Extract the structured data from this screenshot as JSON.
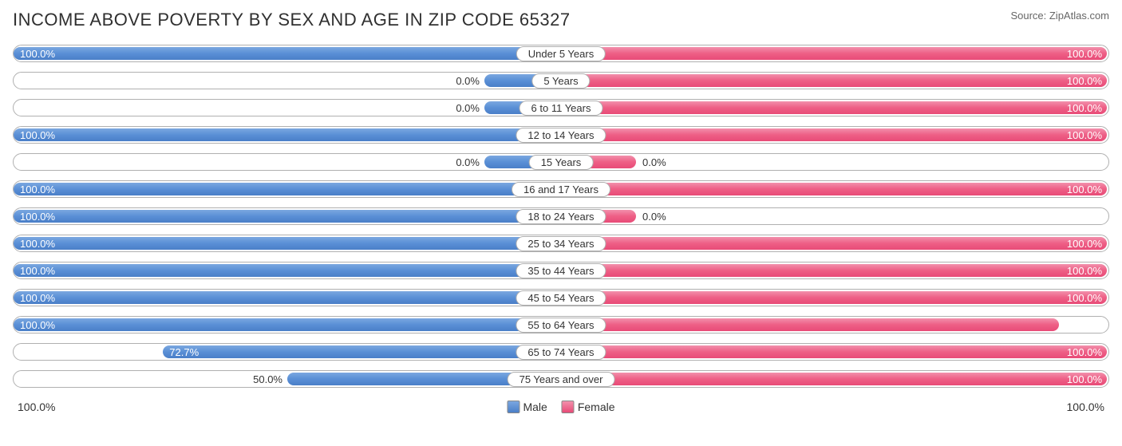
{
  "title": "INCOME ABOVE POVERTY BY SEX AND AGE IN ZIP CODE 65327",
  "source": "Source: ZipAtlas.com",
  "chart": {
    "type": "diverging-bar",
    "male_color_top": "#7ba7e0",
    "male_color_bottom": "#4a7fc8",
    "female_color_top": "#f290ac",
    "female_color_bottom": "#e84b77",
    "track_border_color": "#b0b0b0",
    "background_color": "#ffffff",
    "min_bar_pct": 14,
    "axis_left": "100.0%",
    "axis_right": "100.0%",
    "legend": {
      "male": "Male",
      "female": "Female"
    },
    "rows": [
      {
        "category": "Under 5 Years",
        "male_val": 100.0,
        "male_label": "100.0%",
        "female_val": 100.0,
        "female_label": "100.0%"
      },
      {
        "category": "5 Years",
        "male_val": 0.0,
        "male_label": "0.0%",
        "female_val": 100.0,
        "female_label": "100.0%"
      },
      {
        "category": "6 to 11 Years",
        "male_val": 0.0,
        "male_label": "0.0%",
        "female_val": 100.0,
        "female_label": "100.0%"
      },
      {
        "category": "12 to 14 Years",
        "male_val": 100.0,
        "male_label": "100.0%",
        "female_val": 100.0,
        "female_label": "100.0%"
      },
      {
        "category": "15 Years",
        "male_val": 0.0,
        "male_label": "0.0%",
        "female_val": 0.0,
        "female_label": "0.0%"
      },
      {
        "category": "16 and 17 Years",
        "male_val": 100.0,
        "male_label": "100.0%",
        "female_val": 100.0,
        "female_label": "100.0%"
      },
      {
        "category": "18 to 24 Years",
        "male_val": 100.0,
        "male_label": "100.0%",
        "female_val": 0.0,
        "female_label": "0.0%"
      },
      {
        "category": "25 to 34 Years",
        "male_val": 100.0,
        "male_label": "100.0%",
        "female_val": 100.0,
        "female_label": "100.0%"
      },
      {
        "category": "35 to 44 Years",
        "male_val": 100.0,
        "male_label": "100.0%",
        "female_val": 100.0,
        "female_label": "100.0%"
      },
      {
        "category": "45 to 54 Years",
        "male_val": 100.0,
        "male_label": "100.0%",
        "female_val": 100.0,
        "female_label": "100.0%"
      },
      {
        "category": "55 to 64 Years",
        "male_val": 100.0,
        "male_label": "100.0%",
        "female_val": 91.3,
        "female_label": "91.3%"
      },
      {
        "category": "65 to 74 Years",
        "male_val": 72.7,
        "male_label": "72.7%",
        "female_val": 100.0,
        "female_label": "100.0%"
      },
      {
        "category": "75 Years and over",
        "male_val": 50.0,
        "male_label": "50.0%",
        "female_val": 100.0,
        "female_label": "100.0%"
      }
    ]
  }
}
